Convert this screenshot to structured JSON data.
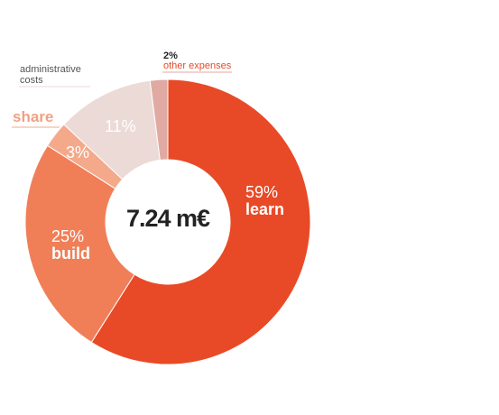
{
  "chart_data": {
    "type": "pie",
    "subtype": "donut",
    "total_label": "7.24 m€",
    "categories": [
      "learn",
      "build",
      "share",
      "administrative costs",
      "other expenses"
    ],
    "values": [
      59,
      25,
      3,
      11,
      2
    ],
    "value_labels": [
      "59%",
      "25%",
      "3%",
      "11%",
      "2%"
    ],
    "colors": [
      "#e84a27",
      "#f07f58",
      "#f4a98a",
      "#ecdad7",
      "#e0aaa3"
    ]
  }
}
